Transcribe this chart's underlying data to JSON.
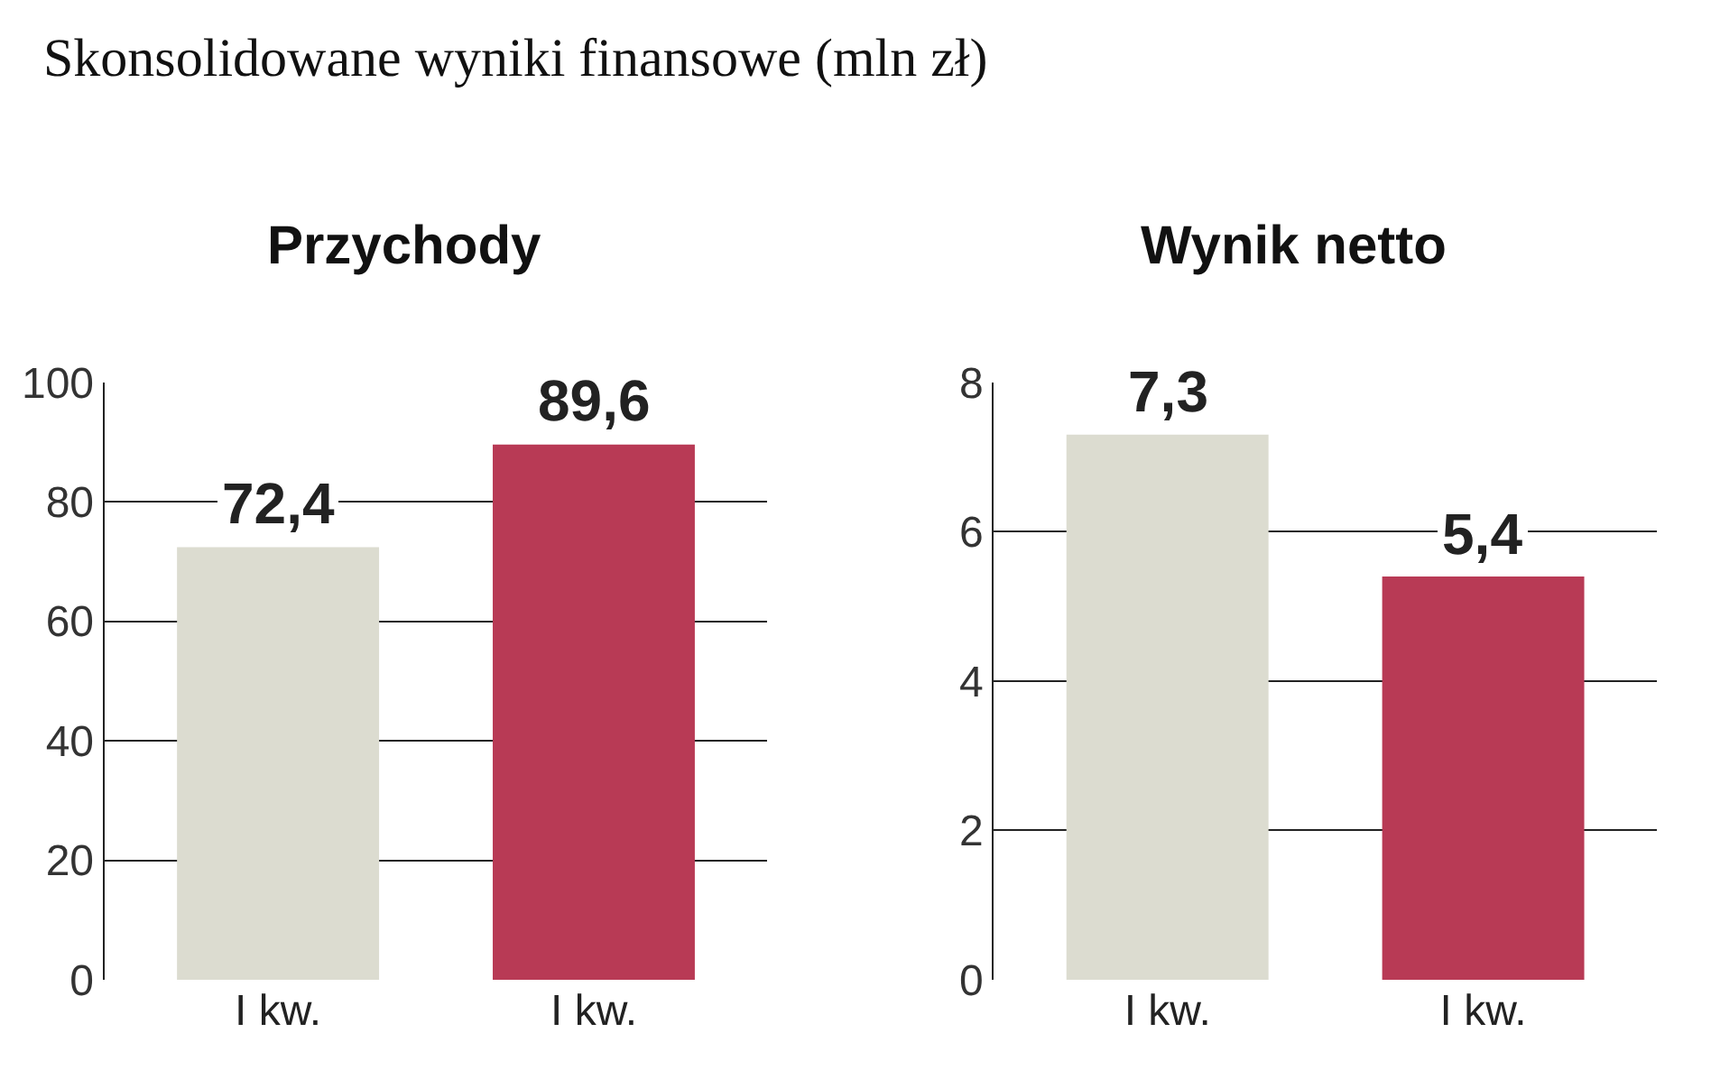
{
  "chart_data": [
    {
      "type": "bar",
      "title": "Przychody",
      "annotations": [
        "Skonsolidowane wyniki finansowe (mln zł)"
      ],
      "categories": [
        "I kw.",
        "I kw."
      ],
      "values": [
        72.4,
        89.6
      ],
      "value_labels": [
        "72,4",
        "89,6"
      ],
      "colors": [
        "#dcdcd0",
        "#b83a55"
      ],
      "ylim": [
        0,
        100
      ],
      "yticks": [
        0,
        20,
        40,
        60,
        80,
        100
      ],
      "grid": "y"
    },
    {
      "type": "bar",
      "title": "Wynik netto",
      "categories": [
        "I kw.",
        "I kw."
      ],
      "values": [
        7.3,
        5.4
      ],
      "value_labels": [
        "7,3",
        "5,4"
      ],
      "colors": [
        "#dcdcd0",
        "#b83a55"
      ],
      "ylim": [
        0,
        8
      ],
      "yticks": [
        0,
        2,
        4,
        6,
        8
      ],
      "grid": "y"
    }
  ]
}
